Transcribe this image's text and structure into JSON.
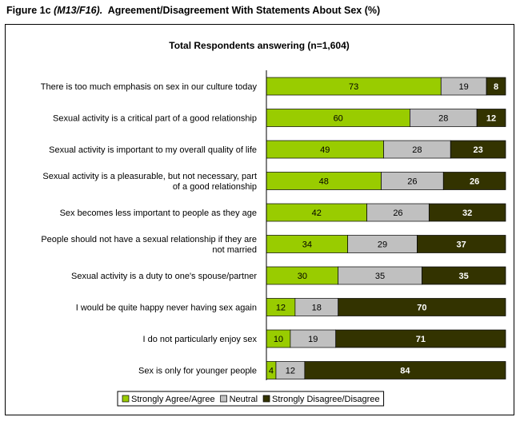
{
  "figure": {
    "label": "Figure 1c",
    "code": "(M13/F16).",
    "title": "Agreement/Disagreement With Statements About Sex (%)"
  },
  "chart_data": {
    "type": "bar",
    "orientation": "horizontal",
    "stacked": true,
    "title": "Total Respondents answering (n=1,604)",
    "xlabel": "",
    "ylabel": "",
    "xlim": [
      0,
      100
    ],
    "grid": false,
    "legend_position": "bottom",
    "categories": [
      [
        "There is too much emphasis on sex in our culture today"
      ],
      [
        "Sexual activity is a critical part of a good relationship"
      ],
      [
        "Sexual activity is important to my overall quality of life"
      ],
      [
        "Sexual activity is a pleasurable, but not necessary, part",
        "of a good relationship"
      ],
      [
        "Sex becomes less important to people as they age"
      ],
      [
        "People should not have a sexual relationship if they are",
        "not married"
      ],
      [
        "Sexual activity is a duty to one's spouse/partner"
      ],
      [
        "I would be quite happy never having sex again"
      ],
      [
        "I do not particularly enjoy sex"
      ],
      [
        "Sex is only for younger people"
      ]
    ],
    "series": [
      {
        "name": "Strongly Agree/Agree",
        "color": "#99cc00",
        "label_color": "#000000",
        "label_weight": "normal",
        "values": [
          73,
          60,
          49,
          48,
          42,
          34,
          30,
          12,
          10,
          4
        ]
      },
      {
        "name": "Neutral",
        "color": "#c0c0c0",
        "label_color": "#000000",
        "label_weight": "normal",
        "values": [
          19,
          28,
          28,
          26,
          26,
          29,
          35,
          18,
          19,
          12
        ]
      },
      {
        "name": "Strongly Disagree/Disagree",
        "color": "#333300",
        "label_color": "#ffffff",
        "label_weight": "bold",
        "values": [
          8,
          12,
          23,
          26,
          32,
          37,
          35,
          70,
          71,
          84
        ]
      }
    ]
  }
}
